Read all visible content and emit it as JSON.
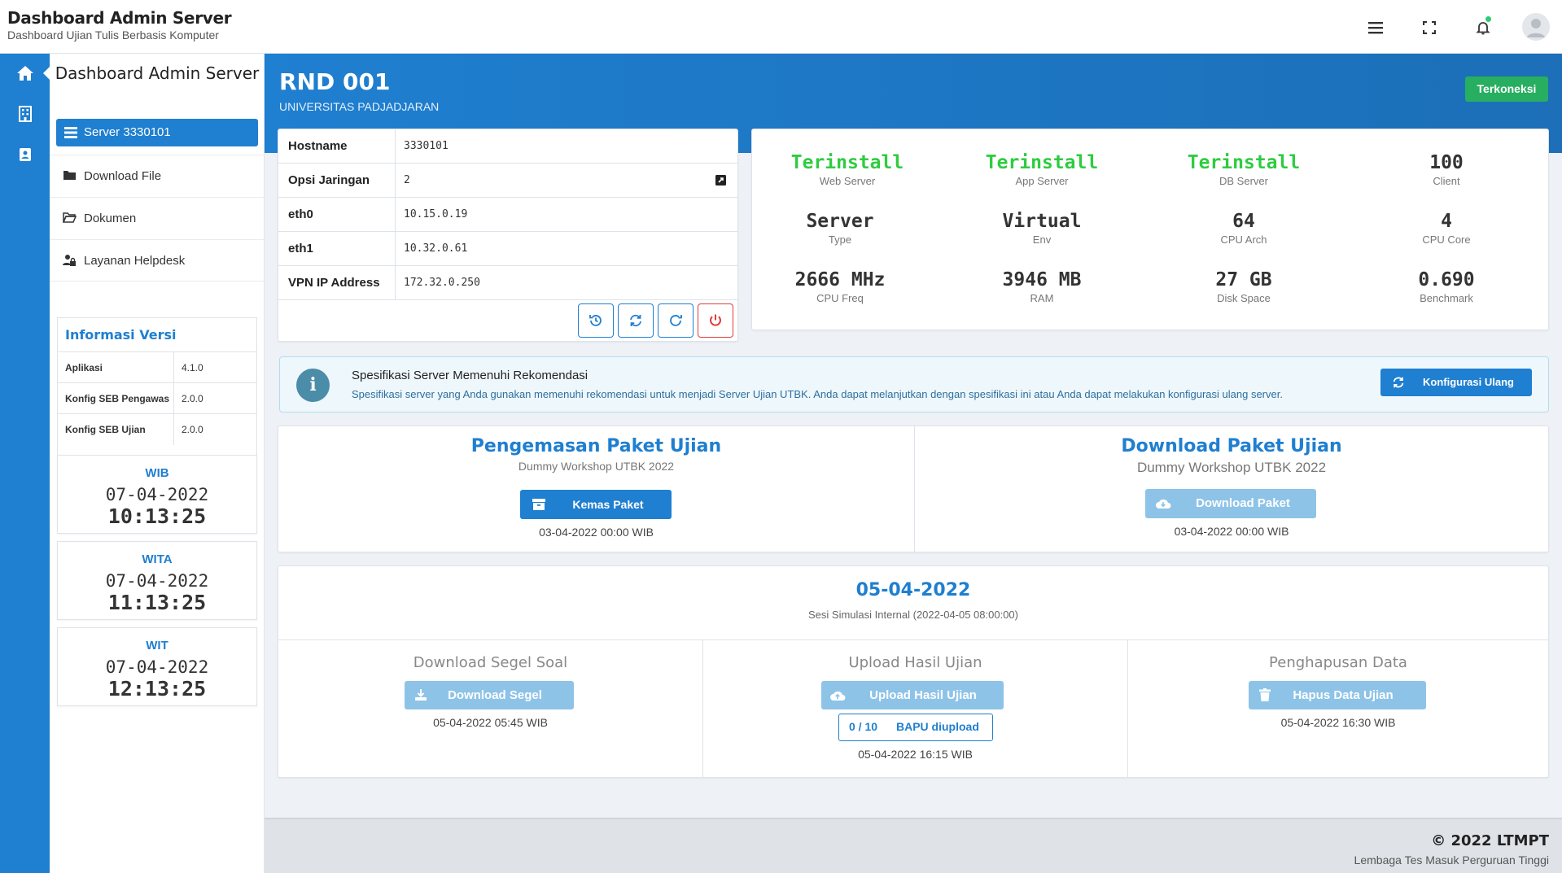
{
  "header": {
    "title": "Dashboard Admin Server",
    "subtitle": "Dashboard Ujian Tulis Berbasis Komputer"
  },
  "sidebar": {
    "title": "Dashboard Admin Server",
    "active_item": "Server 3330101",
    "items": [
      {
        "label": "Download File",
        "icon": "folder-icon"
      },
      {
        "label": "Dokumen",
        "icon": "folder-open-icon"
      },
      {
        "label": "Layanan Helpdesk",
        "icon": "user-lock-icon"
      }
    ],
    "version_title": "Informasi Versi",
    "versions": [
      {
        "key": "Aplikasi",
        "value": "4.1.0"
      },
      {
        "key": "Konfig SEB Pengawas",
        "value": "2.0.0"
      },
      {
        "key": "Konfig SEB Ujian",
        "value": "2.0.0"
      }
    ],
    "clocks": [
      {
        "zone": "WIB",
        "date": "07-04-2022",
        "time": "10:13:25"
      },
      {
        "zone": "WITA",
        "date": "07-04-2022",
        "time": "11:13:25"
      },
      {
        "zone": "WIT",
        "date": "07-04-2022",
        "time": "12:13:25"
      }
    ]
  },
  "server": {
    "name": "RND 001",
    "institution": "UNIVERSITAS PADJADJARAN",
    "status": "Terkoneksi",
    "status_color": "#27ae60",
    "info": [
      {
        "key": "Hostname",
        "value": "3330101"
      },
      {
        "key": "Opsi Jaringan",
        "value": "2"
      },
      {
        "key": "eth0",
        "value": "10.15.0.19"
      },
      {
        "key": "eth1",
        "value": "10.32.0.61"
      },
      {
        "key": "VPN IP Address",
        "value": "172.32.0.250"
      }
    ]
  },
  "stats": [
    {
      "value": "Terinstall",
      "label": "Web Server"
    },
    {
      "value": "Terinstall",
      "label": "App Server"
    },
    {
      "value": "Terinstall",
      "label": "DB Server"
    },
    {
      "value": "100",
      "label": "Client"
    },
    {
      "value": "Server",
      "label": "Type"
    },
    {
      "value": "Virtual",
      "label": "Env"
    },
    {
      "value": "64",
      "label": "CPU Arch"
    },
    {
      "value": "4",
      "label": "CPU Core"
    },
    {
      "value": "2666 MHz",
      "label": "CPU Freq"
    },
    {
      "value": "3946 MB",
      "label": "RAM"
    },
    {
      "value": "27 GB",
      "label": "Disk Space"
    },
    {
      "value": "0.690",
      "label": "Benchmark"
    }
  ],
  "alert": {
    "title": "Spesifikasi Server Memenuhi Rekomendasi",
    "text": "Spesifikasi server yang Anda gunakan memenuhi rekomendasi untuk menjadi Server Ujian UTBK. Anda dapat melanjutkan dengan spesifikasi ini atau Anda dapat melakukan konfigurasi ulang server.",
    "button": "Konfigurasi Ulang"
  },
  "packages": {
    "pack": {
      "title": "Pengemasan Paket Ujian",
      "subtitle": "Dummy Workshop UTBK 2022",
      "button": "Kemas Paket",
      "date": "03-04-2022 00:00 WIB"
    },
    "download": {
      "title": "Download Paket Ujian",
      "subtitle": "Dummy Workshop UTBK 2022",
      "button": "Download Paket",
      "date": "03-04-2022 00:00 WIB"
    }
  },
  "session": {
    "date": "05-04-2022",
    "subtitle": "Sesi Simulasi Internal (2022-04-05 08:00:00)",
    "segel": {
      "heading": "Download Segel Soal",
      "button": "Download Segel",
      "date": "05-04-2022 05:45 WIB"
    },
    "upload": {
      "heading": "Upload Hasil Ujian",
      "button": "Upload Hasil Ujian",
      "bapu_count": "0 / 10",
      "bapu_label": "BAPU diupload",
      "date": "05-04-2022 16:15 WIB"
    },
    "hapus": {
      "heading": "Penghapusan Data",
      "button": "Hapus Data Ujian",
      "date": "05-04-2022 16:30 WIB"
    }
  },
  "footer": {
    "copyright": "© 2022 LTMPT",
    "org": "Lembaga Tes Masuk Perguruan Tinggi"
  },
  "colors": {
    "accent": "#1f7fd0",
    "installed": "#2ecc40",
    "danger": "#e03b3b"
  }
}
